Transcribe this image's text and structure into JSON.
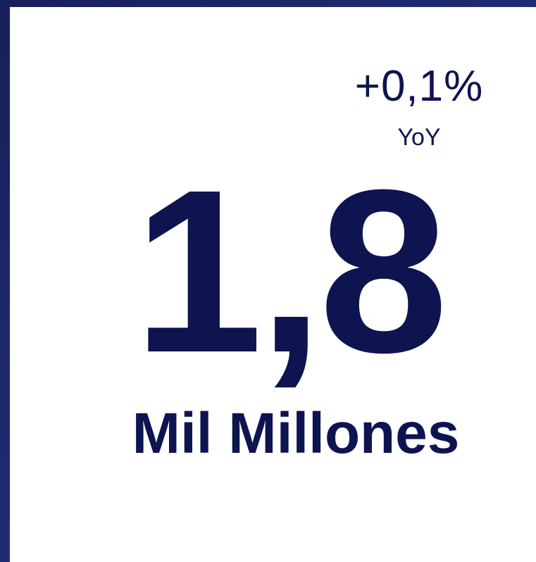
{
  "kpi": {
    "change": "+0,1%",
    "change_period": "YoY",
    "value": "1,8",
    "unit": "Mil Millones"
  },
  "colors": {
    "frame": "#1c2360",
    "card": "#ffffff",
    "text": "#0d1450"
  }
}
